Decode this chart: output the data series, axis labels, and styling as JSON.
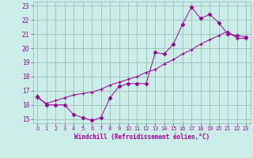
{
  "xlabel": "Windchill (Refroidissement éolien,°C)",
  "xlim": [
    -0.5,
    23.5
  ],
  "ylim": [
    14.7,
    23.3
  ],
  "yticks": [
    15,
    16,
    17,
    18,
    19,
    20,
    21,
    22,
    23
  ],
  "xticks": [
    0,
    1,
    2,
    3,
    4,
    5,
    6,
    7,
    8,
    9,
    10,
    11,
    12,
    13,
    14,
    15,
    16,
    17,
    18,
    19,
    20,
    21,
    22,
    23
  ],
  "bg_color": "#cceee8",
  "grid_color": "#9bbfbb",
  "line_color": "#990099",
  "line1_x": [
    0,
    1,
    2,
    3,
    4,
    5,
    6,
    7,
    8,
    9,
    10,
    11,
    12,
    13,
    14,
    15,
    16,
    17,
    18,
    19,
    20,
    21,
    22,
    23
  ],
  "line1_y": [
    16.6,
    16.0,
    16.0,
    16.0,
    15.3,
    15.1,
    14.9,
    15.1,
    16.5,
    17.3,
    17.5,
    17.5,
    17.5,
    19.7,
    19.6,
    20.3,
    21.7,
    22.9,
    22.1,
    22.4,
    21.8,
    21.0,
    20.9,
    20.8
  ],
  "line2_x": [
    0,
    1,
    2,
    3,
    4,
    5,
    6,
    7,
    8,
    9,
    10,
    11,
    12,
    13,
    14,
    15,
    16,
    17,
    18,
    19,
    20,
    21,
    22,
    23
  ],
  "line2_y": [
    16.5,
    16.1,
    16.3,
    16.5,
    16.7,
    16.8,
    16.9,
    17.1,
    17.4,
    17.6,
    17.8,
    18.0,
    18.3,
    18.5,
    18.9,
    19.2,
    19.6,
    19.9,
    20.3,
    20.6,
    20.9,
    21.2,
    20.7,
    20.7
  ]
}
